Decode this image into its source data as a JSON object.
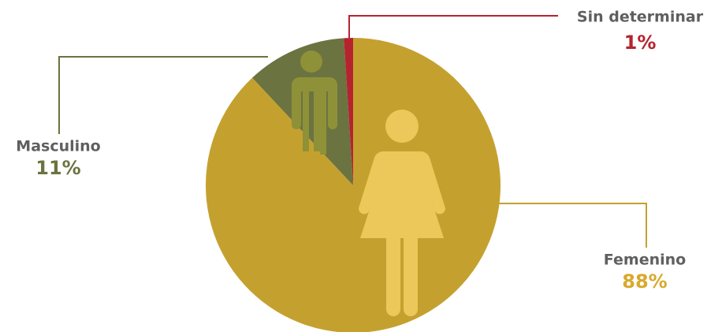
{
  "chart_data": {
    "type": "pie",
    "categories": [
      "Femenino",
      "Masculino",
      "Sin determinar"
    ],
    "values": [
      88,
      11,
      1
    ],
    "value_labels": [
      "88%",
      "11%",
      "1%"
    ],
    "colors": [
      "#c4a12f",
      "#6b7340",
      "#b5232f"
    ]
  }
}
